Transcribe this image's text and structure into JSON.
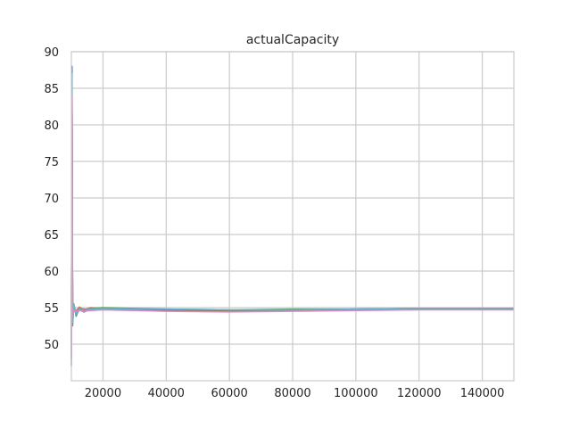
{
  "chart_data": {
    "type": "line",
    "title": "actualCapacity",
    "xlabel": "",
    "ylabel": "",
    "xlim": [
      10000,
      150000
    ],
    "ylim": [
      45,
      90
    ],
    "xticks": [
      20000,
      40000,
      60000,
      80000,
      100000,
      120000,
      140000
    ],
    "yticks": [
      50,
      55,
      60,
      65,
      70,
      75,
      80,
      85,
      90
    ],
    "grid": true,
    "legend": "none",
    "series": [
      {
        "color": "#4c72b0",
        "points": [
          [
            10000,
            50
          ],
          [
            10200,
            88
          ],
          [
            10400,
            53
          ],
          [
            10800,
            55.3
          ],
          [
            11500,
            54.2
          ],
          [
            12500,
            54.9
          ],
          [
            14000,
            54.6
          ],
          [
            16000,
            54.8
          ],
          [
            20000,
            54.9
          ],
          [
            30000,
            54.8
          ],
          [
            40000,
            54.7
          ],
          [
            60000,
            54.6
          ],
          [
            80000,
            54.7
          ],
          [
            100000,
            54.8
          ],
          [
            120000,
            54.9
          ],
          [
            150000,
            54.9
          ]
        ]
      },
      {
        "color": "#dd8452",
        "points": [
          [
            10000,
            48
          ],
          [
            10200,
            83
          ],
          [
            10400,
            54
          ],
          [
            10800,
            54.8
          ],
          [
            11500,
            54.6
          ],
          [
            12500,
            55.1
          ],
          [
            14000,
            54.7
          ],
          [
            16000,
            55.0
          ],
          [
            20000,
            54.9
          ],
          [
            30000,
            54.8
          ],
          [
            40000,
            54.7
          ],
          [
            60000,
            54.6
          ],
          [
            80000,
            54.6
          ],
          [
            100000,
            54.7
          ],
          [
            120000,
            54.8
          ],
          [
            150000,
            54.8
          ]
        ]
      },
      {
        "color": "#55a868",
        "points": [
          [
            10000,
            49
          ],
          [
            10200,
            86
          ],
          [
            10400,
            52.5
          ],
          [
            10800,
            55.5
          ],
          [
            11500,
            53.8
          ],
          [
            12500,
            54.9
          ],
          [
            14000,
            54.5
          ],
          [
            16000,
            54.9
          ],
          [
            20000,
            55.0
          ],
          [
            30000,
            54.9
          ],
          [
            40000,
            54.8
          ],
          [
            60000,
            54.7
          ],
          [
            80000,
            54.8
          ],
          [
            100000,
            54.8
          ],
          [
            120000,
            54.9
          ],
          [
            150000,
            54.9
          ]
        ]
      },
      {
        "color": "#c44e52",
        "points": [
          [
            10000,
            51
          ],
          [
            10200,
            80
          ],
          [
            10400,
            54.5
          ],
          [
            10800,
            54.9
          ],
          [
            11500,
            54.4
          ],
          [
            12500,
            54.8
          ],
          [
            14000,
            54.8
          ],
          [
            16000,
            54.7
          ],
          [
            20000,
            54.8
          ],
          [
            30000,
            54.7
          ],
          [
            40000,
            54.6
          ],
          [
            60000,
            54.5
          ],
          [
            80000,
            54.6
          ],
          [
            100000,
            54.7
          ],
          [
            120000,
            54.8
          ],
          [
            150000,
            54.8
          ]
        ]
      },
      {
        "color": "#8172b3",
        "points": [
          [
            10000,
            47
          ],
          [
            10200,
            85
          ],
          [
            10400,
            53.5
          ],
          [
            10800,
            55.1
          ],
          [
            11500,
            54.0
          ],
          [
            12500,
            54.7
          ],
          [
            14000,
            54.4
          ],
          [
            16000,
            54.8
          ],
          [
            20000,
            54.9
          ],
          [
            30000,
            54.8
          ],
          [
            40000,
            54.7
          ],
          [
            60000,
            54.6
          ],
          [
            80000,
            54.6
          ],
          [
            100000,
            54.7
          ],
          [
            120000,
            54.8
          ],
          [
            150000,
            54.8
          ]
        ]
      },
      {
        "color": "#937860",
        "points": [
          [
            10000,
            52
          ],
          [
            10200,
            78
          ],
          [
            10400,
            54
          ],
          [
            10800,
            55.2
          ],
          [
            11500,
            54.3
          ],
          [
            12500,
            54.9
          ],
          [
            14000,
            54.6
          ],
          [
            16000,
            54.9
          ],
          [
            20000,
            54.9
          ],
          [
            30000,
            54.8
          ],
          [
            40000,
            54.7
          ],
          [
            60000,
            54.6
          ],
          [
            80000,
            54.7
          ],
          [
            100000,
            54.7
          ],
          [
            120000,
            54.8
          ],
          [
            150000,
            54.8
          ]
        ]
      },
      {
        "color": "#64b5cd",
        "points": [
          [
            10000,
            49.5
          ],
          [
            10200,
            87
          ],
          [
            10400,
            53
          ],
          [
            10800,
            55.4
          ],
          [
            11500,
            54.1
          ],
          [
            12500,
            54.8
          ],
          [
            14000,
            54.7
          ],
          [
            16000,
            54.8
          ],
          [
            20000,
            54.9
          ],
          [
            30000,
            54.8
          ],
          [
            40000,
            54.8
          ],
          [
            60000,
            54.7
          ],
          [
            80000,
            54.7
          ],
          [
            100000,
            54.8
          ],
          [
            120000,
            54.9
          ],
          [
            150000,
            54.9
          ]
        ]
      },
      {
        "color": "#da8bc3",
        "points": [
          [
            10000,
            48.5
          ],
          [
            10200,
            84
          ],
          [
            10400,
            53.8
          ],
          [
            10800,
            54.7
          ],
          [
            11500,
            54.5
          ],
          [
            12500,
            54.6
          ],
          [
            14000,
            54.5
          ],
          [
            16000,
            54.6
          ],
          [
            20000,
            54.7
          ],
          [
            30000,
            54.6
          ],
          [
            40000,
            54.5
          ],
          [
            60000,
            54.4
          ],
          [
            80000,
            54.5
          ],
          [
            100000,
            54.6
          ],
          [
            120000,
            54.7
          ],
          [
            150000,
            54.7
          ]
        ]
      }
    ]
  }
}
